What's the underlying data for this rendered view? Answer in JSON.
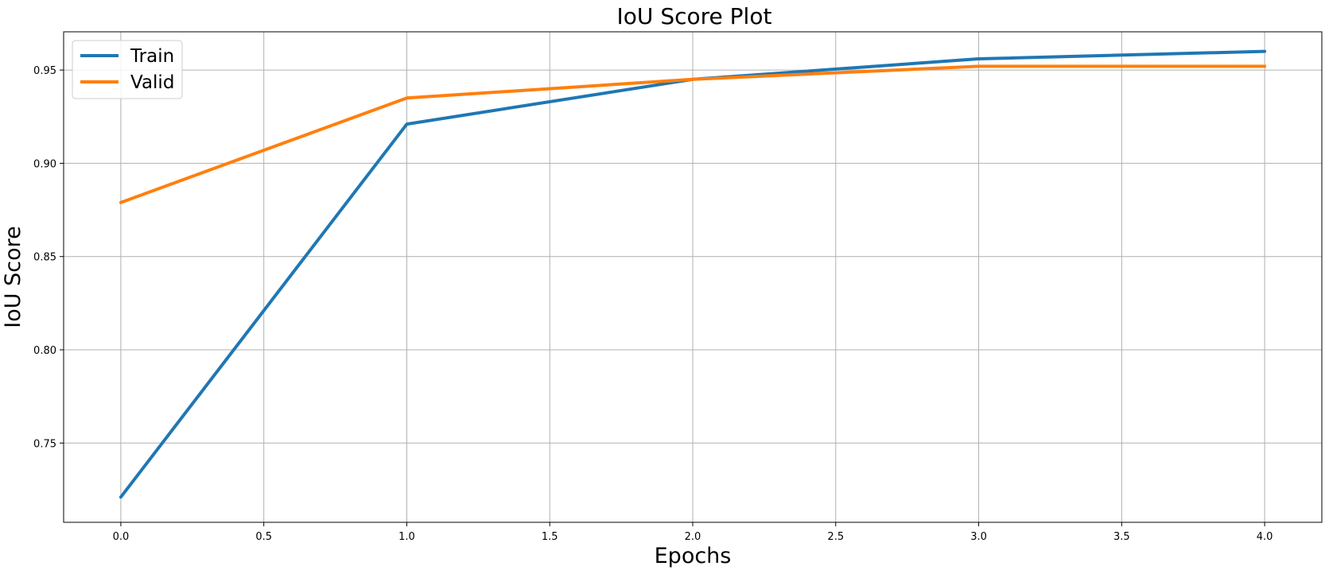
{
  "chart_data": {
    "type": "line",
    "title": "IoU Score Plot",
    "xlabel": "Epochs",
    "ylabel": "IoU Score",
    "x": [
      0,
      1,
      2,
      3,
      4
    ],
    "series": [
      {
        "name": "Train",
        "color": "#1f77b4",
        "values": [
          0.721,
          0.921,
          0.945,
          0.956,
          0.96
        ]
      },
      {
        "name": "Valid",
        "color": "#ff7f0e",
        "values": [
          0.879,
          0.935,
          0.945,
          0.952,
          0.952
        ]
      }
    ],
    "xlim": [
      -0.2,
      4.2
    ],
    "ylim": [
      0.7075,
      0.9705
    ],
    "xticks": [
      0.0,
      0.5,
      1.0,
      1.5,
      2.0,
      2.5,
      3.0,
      3.5,
      4.0
    ],
    "xtick_labels": [
      "0.0",
      "0.5",
      "1.0",
      "1.5",
      "2.0",
      "2.5",
      "3.0",
      "3.5",
      "4.0"
    ],
    "yticks": [
      0.75,
      0.8,
      0.85,
      0.9,
      0.95
    ],
    "ytick_labels": [
      "0.75",
      "0.80",
      "0.85",
      "0.90",
      "0.95"
    ],
    "grid": true,
    "legend_position": "top-left"
  }
}
